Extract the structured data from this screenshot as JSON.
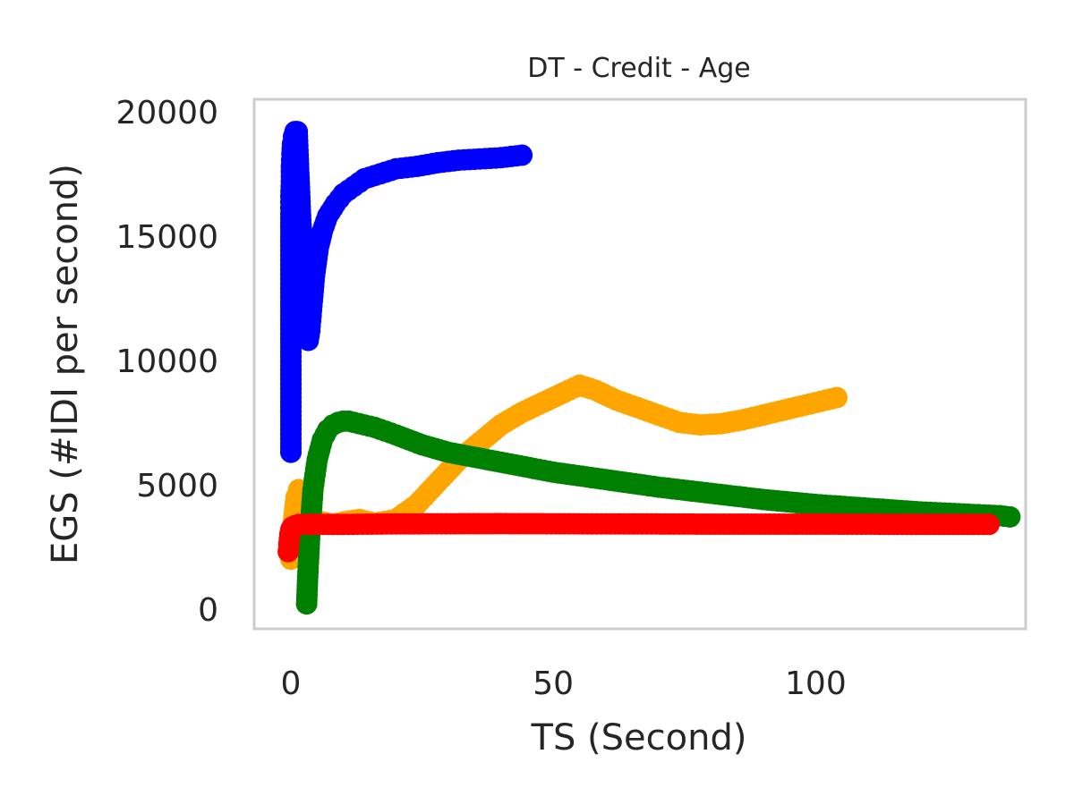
{
  "chart_data": {
    "type": "line",
    "title": "DT - Credit - Age",
    "xlabel": "TS (Second)",
    "ylabel": "EGS (#IDI  per second)",
    "xlim": [
      -7,
      140
    ],
    "ylim": [
      -800,
      20500
    ],
    "xticks": [
      0,
      50,
      100
    ],
    "yticks": [
      0,
      5000,
      10000,
      15000,
      20000
    ],
    "grid": false,
    "series": [
      {
        "color": "#0000ff",
        "marker": "circle",
        "x": [
          0.0,
          0.0,
          0.0,
          0.0,
          0.0,
          0.1,
          0.1,
          0.2,
          0.3,
          0.5,
          0.8,
          1.2,
          1.8,
          2.5,
          3.0,
          3.3,
          3.6,
          4.0,
          4.5,
          5.2,
          6.0,
          7.0,
          8.5,
          10.0,
          12.0,
          14.0,
          17.0,
          20.0,
          24.0,
          28.0,
          32.0,
          36.0,
          40.0,
          44.0
        ],
        "y": [
          6300,
          12900,
          14600,
          15900,
          16600,
          17200,
          17800,
          18300,
          18700,
          19000,
          19200,
          19200,
          16000,
          13000,
          11400,
          10800,
          11200,
          12200,
          13400,
          14500,
          15200,
          15800,
          16300,
          16700,
          17000,
          17300,
          17500,
          17700,
          17800,
          17950,
          18050,
          18100,
          18150,
          18250
        ]
      },
      {
        "color": "#ffa500",
        "marker": "circle",
        "x": [
          0.0,
          0.1,
          0.3,
          0.6,
          1.0,
          1.5,
          2.0,
          3.0,
          4.0,
          5.0,
          6.0,
          8.0,
          10.0,
          13.0,
          16.0,
          20.0,
          24.0,
          28.0,
          32.0,
          36.0,
          40.0,
          44.0,
          48.0,
          52.0,
          55.0,
          58.0,
          62.0,
          66.0,
          70.0,
          74.0,
          78.0,
          82.0,
          86.0,
          90.0,
          94.0,
          98.0,
          102.0,
          104.0
        ],
        "y": [
          2000,
          2300,
          3000,
          3800,
          4500,
          4800,
          4600,
          4000,
          3700,
          3500,
          3500,
          3400,
          3500,
          3600,
          3450,
          3600,
          4200,
          5100,
          6000,
          6700,
          7400,
          7900,
          8300,
          8700,
          9000,
          8800,
          8400,
          8100,
          7800,
          7500,
          7400,
          7450,
          7600,
          7800,
          8000,
          8200,
          8400,
          8500
        ]
      },
      {
        "color": "#008000",
        "marker": "circle",
        "x": [
          3.0,
          3.2,
          3.6,
          4.2,
          5.0,
          6.0,
          7.0,
          8.0,
          9.0,
          10.0,
          11.0,
          13.0,
          16.0,
          20.0,
          25.0,
          30.0,
          40.0,
          50.0,
          60.0,
          70.0,
          80.0,
          90.0,
          100.0,
          110.0,
          120.0,
          130.0,
          135.0,
          137.0
        ],
        "y": [
          200,
          1300,
          3000,
          4800,
          6000,
          6800,
          7200,
          7400,
          7500,
          7550,
          7550,
          7450,
          7300,
          7000,
          6600,
          6300,
          5900,
          5500,
          5200,
          4900,
          4650,
          4400,
          4200,
          4050,
          3900,
          3800,
          3750,
          3700
        ]
      },
      {
        "color": "#ff0000",
        "marker": "circle",
        "x": [
          -0.5,
          -0.4,
          -0.2,
          0.0,
          0.3,
          0.8,
          1.5,
          3.0,
          5.0,
          10.0,
          20.0,
          40.0,
          60.0,
          80.0,
          100.0,
          120.0,
          130.0,
          133.0
        ],
        "y": [
          2300,
          2600,
          3000,
          3200,
          3300,
          3350,
          3400,
          3400,
          3400,
          3400,
          3420,
          3430,
          3420,
          3410,
          3410,
          3400,
          3400,
          3400
        ]
      }
    ]
  }
}
